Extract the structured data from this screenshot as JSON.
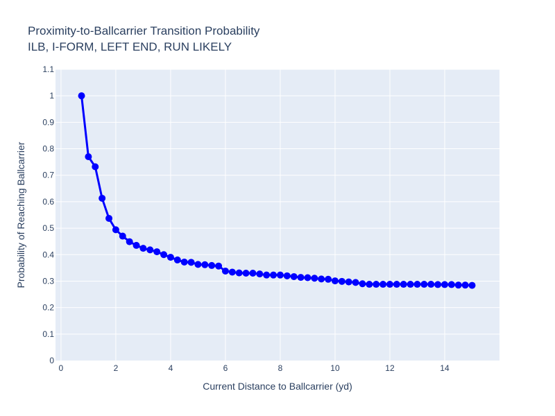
{
  "chart_data": {
    "type": "line",
    "title": "Proximity-to-Ballcarrier Transition Probability",
    "subtitle": "ILB, I-FORM, LEFT END, RUN LIKELY",
    "xlabel": "Current Distance to Ballcarrier (yd)",
    "ylabel": "Probability of Reaching Ballcarrier",
    "xlim": [
      -0.2,
      16
    ],
    "ylim": [
      0,
      1.1
    ],
    "xticks": [
      0,
      2,
      4,
      6,
      8,
      10,
      12,
      14
    ],
    "yticks": [
      0,
      0.1,
      0.2,
      0.3,
      0.4,
      0.5,
      0.6,
      0.7,
      0.8,
      0.9,
      1,
      1.1
    ],
    "grid": true,
    "colors": {
      "series": "#0000ff",
      "plot_bg": "#e5ecf6",
      "grid": "#ffffff",
      "text": "#2a3f5f"
    },
    "x": [
      0.75,
      1.0,
      1.25,
      1.5,
      1.75,
      2.0,
      2.25,
      2.5,
      2.75,
      3.0,
      3.25,
      3.5,
      3.75,
      4.0,
      4.25,
      4.5,
      4.75,
      5.0,
      5.25,
      5.5,
      5.75,
      6.0,
      6.25,
      6.5,
      6.75,
      7.0,
      7.25,
      7.5,
      7.75,
      8.0,
      8.25,
      8.5,
      8.75,
      9.0,
      9.25,
      9.5,
      9.75,
      10.0,
      10.25,
      10.5,
      10.75,
      11.0,
      11.25,
      11.5,
      11.75,
      12.0,
      12.25,
      12.5,
      12.75,
      13.0,
      13.25,
      13.5,
      13.75,
      14.0,
      14.25,
      14.5,
      14.75,
      15.0
    ],
    "y": [
      1.0,
      0.77,
      0.732,
      0.613,
      0.537,
      0.494,
      0.47,
      0.449,
      0.435,
      0.424,
      0.418,
      0.411,
      0.4,
      0.39,
      0.38,
      0.372,
      0.371,
      0.363,
      0.362,
      0.359,
      0.357,
      0.338,
      0.334,
      0.331,
      0.33,
      0.33,
      0.327,
      0.323,
      0.323,
      0.323,
      0.32,
      0.317,
      0.314,
      0.313,
      0.311,
      0.308,
      0.307,
      0.301,
      0.299,
      0.297,
      0.295,
      0.29,
      0.288,
      0.288,
      0.288,
      0.288,
      0.288,
      0.288,
      0.288,
      0.288,
      0.288,
      0.288,
      0.287,
      0.287,
      0.287,
      0.285,
      0.285,
      0.284
    ]
  }
}
